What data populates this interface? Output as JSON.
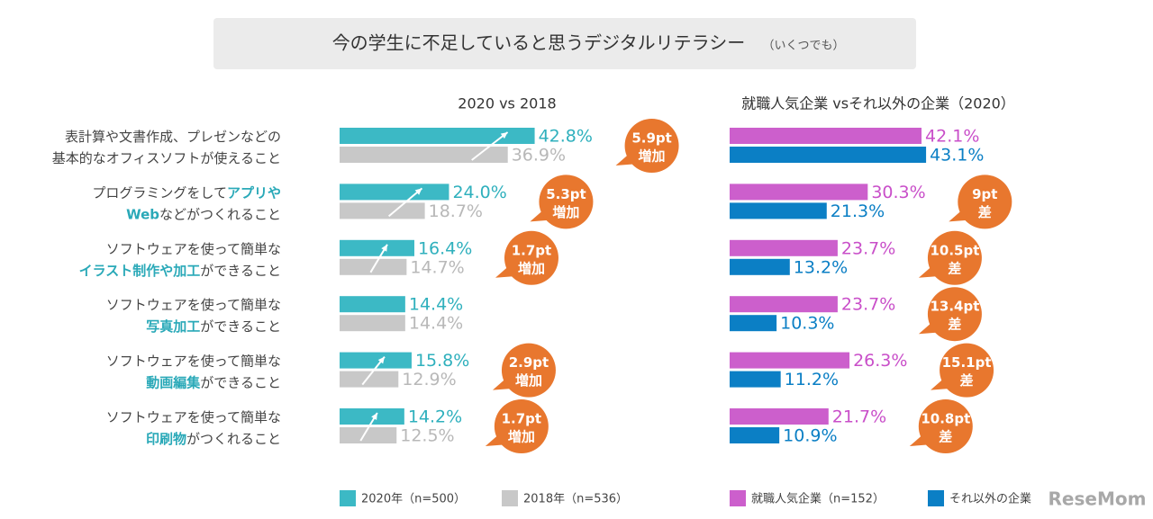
{
  "title": "今の学生に不足していると思うデジタルリテラシー",
  "title_note": "（いくつでも）",
  "watermark": "ReseMom",
  "chart_data": [
    {
      "type": "hbar",
      "title": "2020 vs 2018",
      "categories": [
        [
          [
            {
              "text": "表計算や文書作成、プレゼンなどの",
              "em": false
            }
          ],
          [
            {
              "text": "基本的なオフィスソフトが使えること",
              "em": false
            }
          ]
        ],
        [
          [
            {
              "text": "プログラミングをして",
              "em": false
            },
            {
              "text": "アプリや",
              "em": true
            }
          ],
          [
            {
              "text": "Web",
              "em": true
            },
            {
              "text": "などがつくれること",
              "em": false
            }
          ]
        ],
        [
          [
            {
              "text": "ソフトウェアを使って簡単な",
              "em": false
            }
          ],
          [
            {
              "text": "イラスト制作や加工",
              "em": true
            },
            {
              "text": "ができること",
              "em": false
            }
          ]
        ],
        [
          [
            {
              "text": "ソフトウェアを使って簡単な",
              "em": false
            }
          ],
          [
            {
              "text": "写真加工",
              "em": true
            },
            {
              "text": "ができること",
              "em": false
            }
          ]
        ],
        [
          [
            {
              "text": "ソフトウェアを使って簡単な",
              "em": false
            }
          ],
          [
            {
              "text": "動画編集",
              "em": true
            },
            {
              "text": "ができること",
              "em": false
            }
          ]
        ],
        [
          [
            {
              "text": "ソフトウェアを使って簡単な",
              "em": false
            }
          ],
          [
            {
              "text": "印刷物",
              "em": true
            },
            {
              "text": "がつくれること",
              "em": false
            }
          ]
        ]
      ],
      "series": [
        {
          "name": "2020年（n=500）",
          "color": "#3cb9c5",
          "label_color": "#2fb0bd",
          "values": [
            42.8,
            24.0,
            16.4,
            14.4,
            15.8,
            14.2
          ],
          "value_labels": [
            "42.8%",
            "24.0%",
            "16.4%",
            "14.4%",
            "15.8%",
            "14.2%"
          ]
        },
        {
          "name": "2018年（n=536）",
          "color": "#c8c8c8",
          "label_color": "#b8b8b8",
          "values": [
            36.9,
            18.7,
            14.7,
            14.4,
            12.9,
            12.5
          ],
          "value_labels": [
            "36.9%",
            "18.7%",
            "14.7%",
            "14.4%",
            "12.9%",
            "12.5%"
          ]
        }
      ],
      "annotations": [
        {
          "value": 5.9,
          "label": "5.9pt",
          "text": "増加"
        },
        {
          "value": 5.3,
          "label": "5.3pt",
          "text": "増加"
        },
        {
          "value": 1.7,
          "label": "1.7pt",
          "text": "増加"
        },
        null,
        {
          "value": 2.9,
          "label": "2.9pt",
          "text": "増加"
        },
        {
          "value": 1.7,
          "label": "1.7pt",
          "text": "増加"
        }
      ],
      "annotation_color": "#e8772e",
      "arrows": true,
      "xlim": [
        0,
        50
      ]
    },
    {
      "type": "hbar",
      "title": "就職人気企業 vsそれ以外の企業（2020）",
      "series": [
        {
          "name": "就職人気企業（n=152）",
          "color": "#cc5fcc",
          "label_color": "#c94fc9",
          "values": [
            42.1,
            30.3,
            23.7,
            23.7,
            26.3,
            21.7
          ],
          "value_labels": [
            "42.1%",
            "30.3%",
            "23.7%",
            "23.7%",
            "26.3%",
            "21.7%"
          ]
        },
        {
          "name": "それ以外の企業",
          "color": "#0b7fc5",
          "label_color": "#0b7fc5",
          "values": [
            43.1,
            21.3,
            13.2,
            10.3,
            11.2,
            10.9
          ],
          "value_labels": [
            "43.1%",
            "21.3%",
            "13.2%",
            "10.3%",
            "11.2%",
            "10.9%"
          ]
        }
      ],
      "annotations": [
        null,
        {
          "value": 9,
          "label": "9pt",
          "text": "差"
        },
        {
          "value": 10.5,
          "label": "10.5pt",
          "text": "差"
        },
        {
          "value": 13.4,
          "label": "13.4pt",
          "text": "差"
        },
        {
          "value": 15.1,
          "label": "15.1pt",
          "text": "差"
        },
        {
          "value": 10.8,
          "label": "10.8pt",
          "text": "差"
        }
      ],
      "annotation_color": "#e8772e",
      "arrows": false,
      "xlim": [
        0,
        50
      ]
    }
  ]
}
